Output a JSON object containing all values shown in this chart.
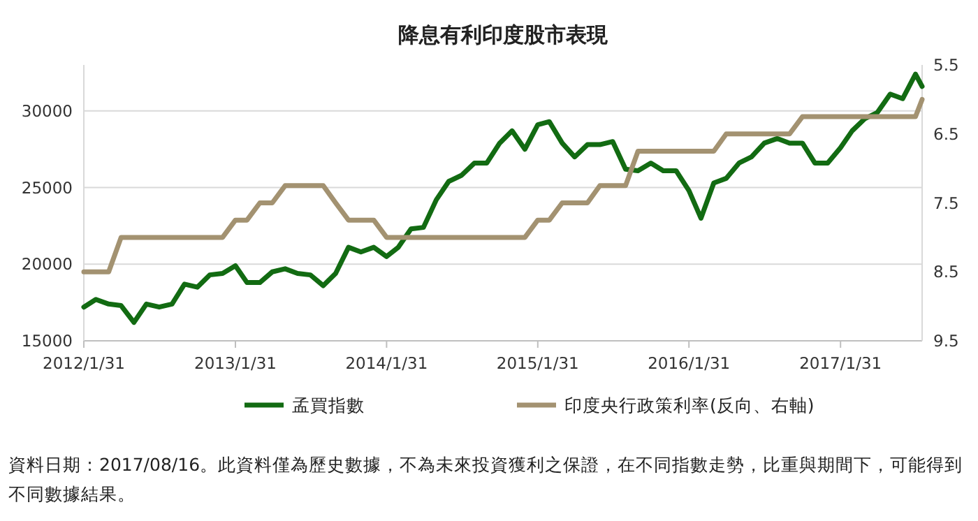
{
  "chart_data": {
    "type": "line",
    "title": "降息有利印度股市表現",
    "x": [
      "2012-01-31",
      "2012-02-29",
      "2012-03-31",
      "2012-04-30",
      "2012-05-31",
      "2012-06-30",
      "2012-07-31",
      "2012-08-31",
      "2012-09-30",
      "2012-10-31",
      "2012-11-30",
      "2012-12-31",
      "2013-01-31",
      "2013-02-28",
      "2013-03-31",
      "2013-04-30",
      "2013-05-31",
      "2013-06-30",
      "2013-07-31",
      "2013-08-31",
      "2013-09-30",
      "2013-10-31",
      "2013-11-30",
      "2013-12-31",
      "2014-01-31",
      "2014-02-28",
      "2014-03-31",
      "2014-04-30",
      "2014-05-31",
      "2014-06-30",
      "2014-07-31",
      "2014-08-31",
      "2014-09-30",
      "2014-10-31",
      "2014-11-30",
      "2014-12-31",
      "2015-01-31",
      "2015-02-28",
      "2015-03-31",
      "2015-04-30",
      "2015-05-31",
      "2015-06-30",
      "2015-07-31",
      "2015-08-31",
      "2015-09-30",
      "2015-10-31",
      "2015-11-30",
      "2015-12-31",
      "2016-01-31",
      "2016-02-29",
      "2016-03-31",
      "2016-04-30",
      "2016-05-31",
      "2016-06-30",
      "2016-07-31",
      "2016-08-31",
      "2016-09-30",
      "2016-10-31",
      "2016-11-30",
      "2016-12-31",
      "2017-01-31",
      "2017-02-28",
      "2017-03-31",
      "2017-04-30",
      "2017-05-31",
      "2017-06-30",
      "2017-07-31",
      "2017-08-16"
    ],
    "series": [
      {
        "name": "孟買指數",
        "color": "#126b12",
        "axis": "y",
        "values": [
          17200,
          17700,
          17400,
          17300,
          16200,
          17400,
          17200,
          17400,
          18700,
          18500,
          19300,
          19400,
          19900,
          18800,
          18800,
          19500,
          19700,
          19400,
          19300,
          18600,
          19400,
          21100,
          20800,
          21100,
          20500,
          21100,
          22300,
          22400,
          24200,
          25400,
          25800,
          26600,
          26600,
          27900,
          28700,
          27500,
          29100,
          29300,
          27900,
          27000,
          27800,
          27800,
          28000,
          26200,
          26100,
          26600,
          26100,
          26100,
          24800,
          23000,
          25300,
          25600,
          26600,
          27000,
          27900,
          28200,
          27900,
          27900,
          26600,
          26600,
          27600,
          28700,
          29500,
          29900,
          31100,
          30800,
          32400,
          31600
        ]
      },
      {
        "name": "印度央行政策利率(反向、右軸)",
        "color": "#a39271",
        "axis": "y2",
        "values": [
          8.5,
          8.5,
          8.5,
          8,
          8,
          8,
          8,
          8,
          8,
          8,
          8,
          8,
          7.75,
          7.75,
          7.5,
          7.5,
          7.25,
          7.25,
          7.25,
          7.25,
          7.5,
          7.75,
          7.75,
          7.75,
          8,
          8,
          8,
          8,
          8,
          8,
          8,
          8,
          8,
          8,
          8,
          8,
          7.75,
          7.75,
          7.5,
          7.5,
          7.5,
          7.25,
          7.25,
          7.25,
          6.75,
          6.75,
          6.75,
          6.75,
          6.75,
          6.75,
          6.75,
          6.5,
          6.5,
          6.5,
          6.5,
          6.5,
          6.5,
          6.25,
          6.25,
          6.25,
          6.25,
          6.25,
          6.25,
          6.25,
          6.25,
          6.25,
          6.25,
          6
        ]
      }
    ],
    "xlim": [
      "2012-01-31",
      "2017-08-16"
    ],
    "xticks": [
      {
        "value": "2012-01-31",
        "label": "2012/1/31"
      },
      {
        "value": "2013-01-31",
        "label": "2013/1/31"
      },
      {
        "value": "2014-01-31",
        "label": "2014/1/31"
      },
      {
        "value": "2015-01-31",
        "label": "2015/1/31"
      },
      {
        "value": "2016-01-31",
        "label": "2016/1/31"
      },
      {
        "value": "2017-01-31",
        "label": "2017/1/31"
      }
    ],
    "ylim": [
      15000,
      33000
    ],
    "yticks": [
      15000,
      20000,
      25000,
      30000
    ],
    "y2lim": [
      9.5,
      5.5
    ],
    "y2ticks": [
      5.5,
      6.5,
      7.5,
      8.5,
      9.5
    ],
    "grid": "y",
    "legend": "bottom",
    "line_style": "solid",
    "marker": "none",
    "annotations": [
      "資料日期：2017/08/16。此資料僅為歷史數據，不為未來投資獲利之保證，在不同指數走勢，比重與期間下，可能得到不同數據結果。"
    ]
  }
}
